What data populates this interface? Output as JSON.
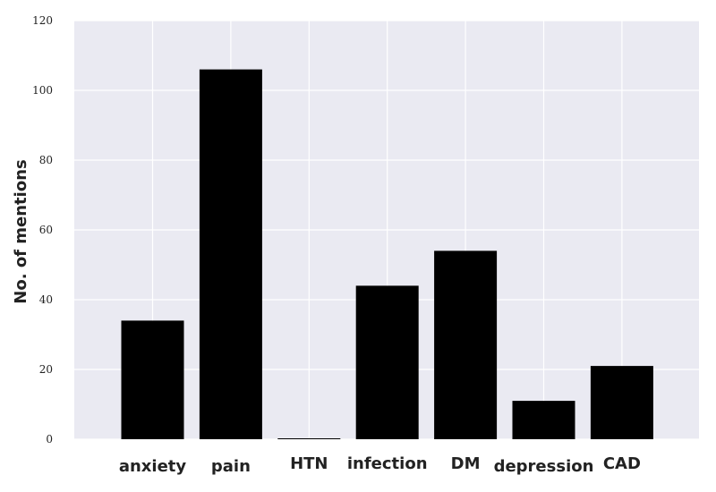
{
  "chart_data": {
    "type": "bar",
    "title": "",
    "xlabel": "",
    "ylabel": "No. of mentions",
    "categories": [
      "anxiety",
      "pain",
      "HTN",
      "infection",
      "DM",
      "depression",
      "CAD"
    ],
    "values": [
      34,
      106,
      0,
      44,
      54,
      11,
      21
    ],
    "ylim": [
      0,
      120
    ],
    "yticks": [
      0,
      20,
      40,
      60,
      80,
      100,
      120
    ],
    "grid": true,
    "legend": "none",
    "colors": {
      "bar": "#000000",
      "plot_background": "#eaeaf2",
      "grid": "#ffffff"
    }
  }
}
